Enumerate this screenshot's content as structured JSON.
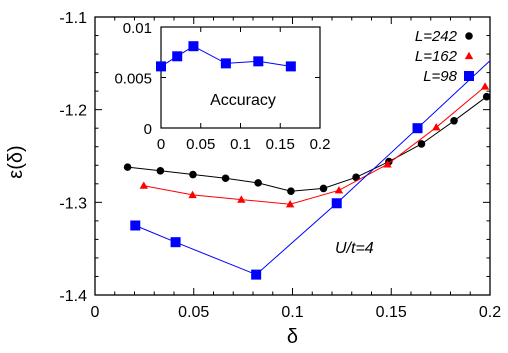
{
  "chart_data": [
    {
      "type": "line",
      "xlabel": "δ",
      "ylabel": "ε(δ)",
      "xlim": [
        0,
        0.2
      ],
      "ylim": [
        -1.4,
        -1.1
      ],
      "xticks": [
        0,
        0.05,
        0.1,
        0.15,
        0.2
      ],
      "xtick_labels": [
        "0",
        "0.05",
        "0.1",
        "0.15",
        "0.2"
      ],
      "yticks": [
        -1.4,
        -1.3,
        -1.2,
        -1.1
      ],
      "ytick_labels": [
        "-1.4",
        "-1.3",
        "-1.2",
        "-1.1"
      ],
      "grid": false,
      "legend_position": "top-right",
      "annotation": "U/t=4",
      "series": [
        {
          "name": "L=242",
          "color": "#000000",
          "marker": "circle",
          "x": [
            0.0165,
            0.0331,
            0.0496,
            0.0661,
            0.0826,
            0.0992,
            0.1157,
            0.1322,
            0.1488,
            0.1653,
            0.1818,
            0.1983
          ],
          "y": [
            -1.262,
            -1.266,
            -1.27,
            -1.274,
            -1.279,
            -1.288,
            -1.285,
            -1.273,
            -1.256,
            -1.237,
            -1.212,
            -1.186
          ]
        },
        {
          "name": "L=162",
          "color": "#ff0000",
          "marker": "triangle",
          "x": [
            0.0247,
            0.0494,
            0.0741,
            0.0988,
            0.1235,
            0.1481,
            0.1728,
            0.1975
          ],
          "y": [
            -1.282,
            -1.292,
            -1.297,
            -1.302,
            -1.287,
            -1.259,
            -1.219,
            -1.175
          ]
        },
        {
          "name": "L=98",
          "color": "#0000ff",
          "marker": "square",
          "x": [
            0.0204,
            0.0408,
            0.0816,
            0.1224,
            0.1633,
            0.2041
          ],
          "y": [
            -1.325,
            -1.343,
            -1.378,
            -1.301,
            -1.22,
            -1.139
          ]
        }
      ]
    },
    {
      "type": "line",
      "title": "Accuracy",
      "xlim": [
        0,
        0.2
      ],
      "ylim": [
        0,
        0.01
      ],
      "xticks": [
        0,
        0.05,
        0.1,
        0.15,
        0.2
      ],
      "xtick_labels": [
        "0",
        "0.05",
        "0.1",
        "0.15",
        "0.2"
      ],
      "yticks": [
        0,
        0.005,
        0.01
      ],
      "ytick_labels": [
        "0",
        "0.005",
        "0.01"
      ],
      "grid": false,
      "series": [
        {
          "color": "#0000ff",
          "marker": "square",
          "x": [
            0.0,
            0.0204,
            0.0408,
            0.0816,
            0.1224,
            0.1633
          ],
          "y": [
            0.0061,
            0.0071,
            0.0081,
            0.0064,
            0.0066,
            0.0061
          ]
        }
      ]
    }
  ]
}
